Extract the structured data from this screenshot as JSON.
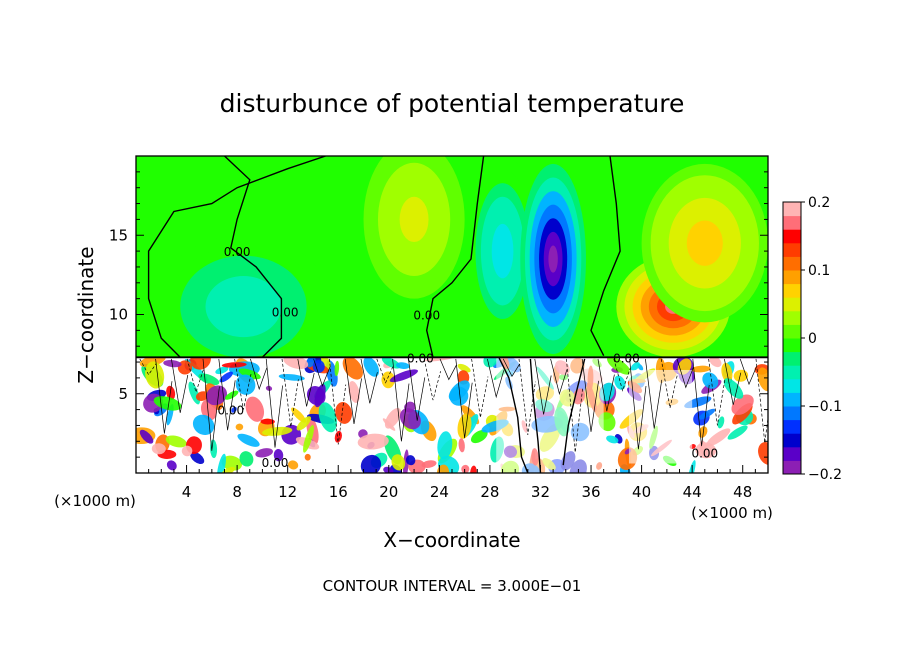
{
  "chart_data": {
    "type": "heatmap",
    "title": "disturbunce of potential temperature",
    "xlabel": "X−coordinate",
    "ylabel": "Z−coordinate",
    "x_unit_left": "(×1000 m)",
    "x_unit_right": "(×1000 m)",
    "footer": "CONTOUR INTERVAL = 3.000E−01",
    "xlim": [
      0,
      50
    ],
    "ylim": [
      0,
      20
    ],
    "x_ticks": [
      4,
      8,
      12,
      16,
      20,
      24,
      28,
      32,
      36,
      40,
      44,
      48
    ],
    "y_ticks": [
      5,
      10,
      15
    ],
    "colorbar": {
      "min": -0.2,
      "max": 0.2,
      "labels": [
        {
          "value": 0.2,
          "text": "0.2"
        },
        {
          "value": 0.1,
          "text": "0.1"
        },
        {
          "value": 0.0,
          "text": "0"
        },
        {
          "value": -0.1,
          "text": "−0.1"
        },
        {
          "value": -0.2,
          "text": "−0.2"
        }
      ],
      "colors": [
        "#8c1fb4",
        "#5a00c8",
        "#0000cc",
        "#0030ff",
        "#0078ff",
        "#00b4ff",
        "#00e6e6",
        "#00f0b0",
        "#00f070",
        "#20ff00",
        "#60ff00",
        "#a0ff00",
        "#dcf000",
        "#ffd200",
        "#ffa000",
        "#ff6e00",
        "#ff3c00",
        "#ff0000",
        "#ff6e78",
        "#ffb4b4"
      ]
    },
    "field_blobs": [
      {
        "x": 8.5,
        "z": 10.5,
        "rx": 7,
        "rz": 4.5,
        "v": -0.06
      },
      {
        "x": 22,
        "z": 16,
        "rx": 4,
        "rz": 5,
        "v": 0.05
      },
      {
        "x": 29,
        "z": 14,
        "rx": 3,
        "rz": 6,
        "v": -0.08
      },
      {
        "x": 33,
        "z": 13.5,
        "rx": 2.6,
        "rz": 6,
        "v": -0.2
      },
      {
        "x": 42.5,
        "z": 10.5,
        "rx": 4.5,
        "rz": 3.2,
        "v": 0.16
      },
      {
        "x": 45,
        "z": 14.5,
        "rx": 5,
        "rz": 5,
        "v": 0.07
      }
    ],
    "contour_labels": [
      {
        "x": 8,
        "z": 14,
        "text": "0.00"
      },
      {
        "x": 11.8,
        "z": 10.2,
        "text": "0.00"
      },
      {
        "x": 23,
        "z": 10,
        "text": "0.00"
      },
      {
        "x": 22.5,
        "z": 7.3,
        "text": "0.00"
      },
      {
        "x": 38.8,
        "z": 7.3,
        "text": "0.00"
      },
      {
        "x": 7.5,
        "z": 4,
        "text": "0.00"
      },
      {
        "x": 11,
        "z": 0.7,
        "text": "0.00"
      },
      {
        "x": 45,
        "z": 1.3,
        "text": "0.00"
      }
    ]
  }
}
